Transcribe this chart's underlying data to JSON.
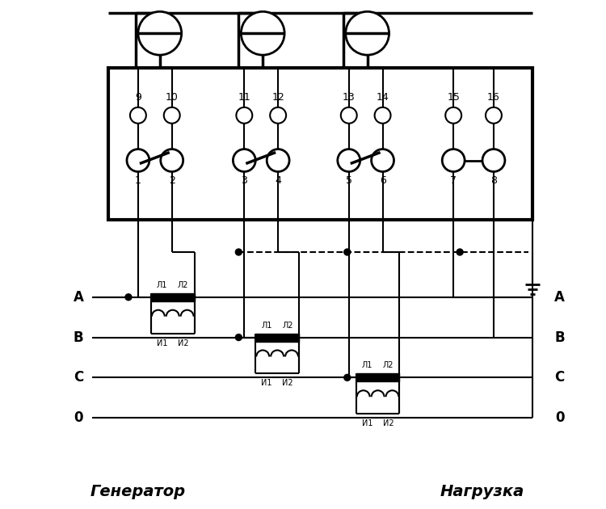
{
  "bg_color": "#ffffff",
  "title_generator": "Генератор",
  "title_load": "Нагрузка",
  "figsize": [
    7.5,
    6.3
  ],
  "dpi": 100,
  "nums_top": [
    "9",
    "10",
    "11",
    "12",
    "13",
    "14",
    "15",
    "16"
  ],
  "nums_bot": [
    "1",
    "2",
    "3",
    "4",
    "5",
    "6",
    "7",
    "8"
  ],
  "ct_labels_l": [
    "Л1",
    "Л2"
  ],
  "ct_labels_i": [
    "И1",
    "И2"
  ],
  "phases_left": [
    "A",
    "B",
    "C",
    "0"
  ],
  "phases_right": [
    "A",
    "B",
    "C",
    "0"
  ]
}
